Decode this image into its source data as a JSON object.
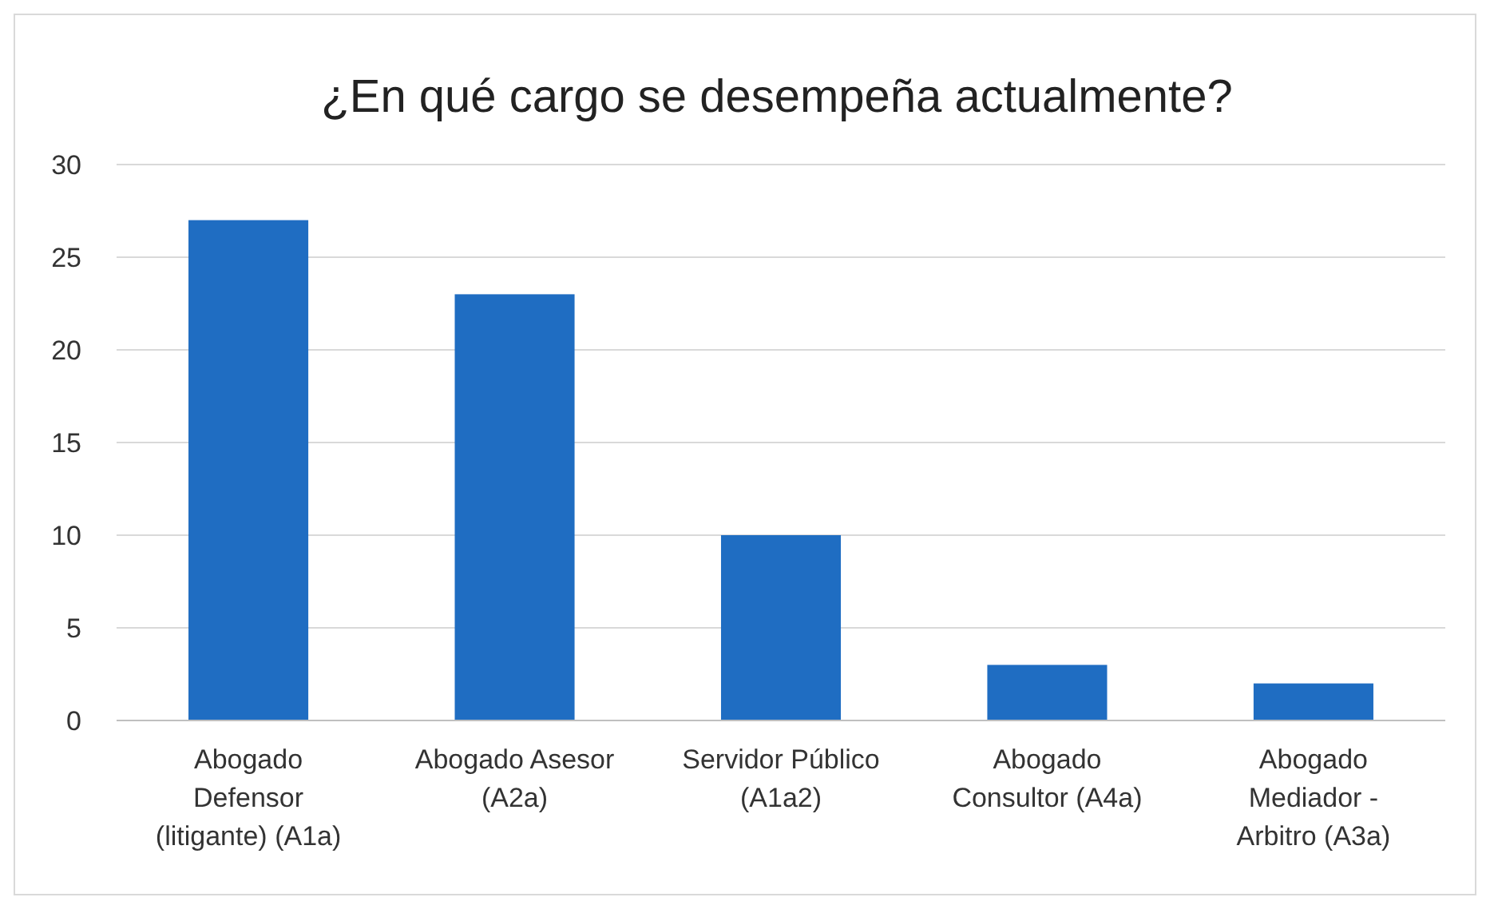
{
  "chart_data": {
    "type": "bar",
    "title": "¿En qué cargo se desempeña actualmente?",
    "categories": [
      "Abogado Defensor (litigante) (A1a)",
      "Abogado Asesor (A2a)",
      "Servidor Público (A1a2)",
      "Abogado Consultor (A4a)",
      "Abogado Mediador - Arbitro (A3a)"
    ],
    "values": [
      27,
      23,
      10,
      3,
      2
    ],
    "color": "#1f6dc2",
    "ylim": [
      0,
      30
    ],
    "yticks": [
      0,
      5,
      10,
      15,
      20,
      25,
      30
    ],
    "grid": "y"
  }
}
